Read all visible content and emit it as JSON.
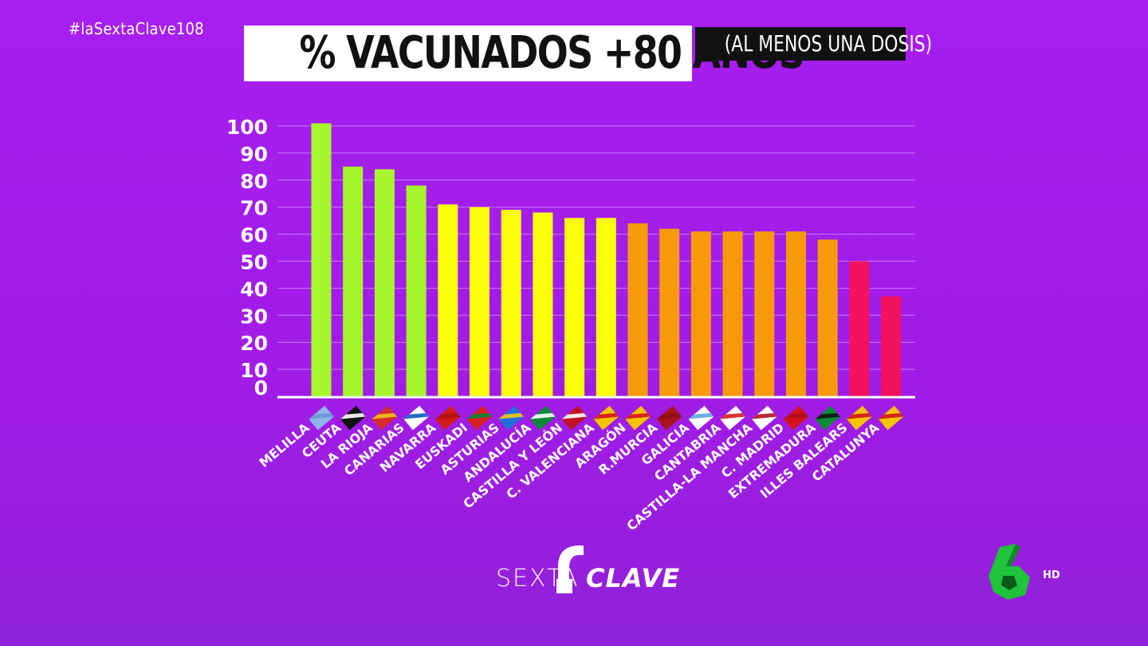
{
  "hashtag": "#laSextaClave108",
  "title": {
    "main": "% VACUNADOS +80 AÑOS",
    "sub": "(AL MENOS UNA DOSIS)"
  },
  "logo": {
    "left": "SEXTA",
    "right": "CLAVE",
    "channel_badge": "HD"
  },
  "colors": {
    "green": "#a6f52d",
    "yellow": "#fbff0e",
    "orange": "#f7990b",
    "red": "#f2125d"
  },
  "chart_data": {
    "type": "bar",
    "ylim": [
      0,
      100
    ],
    "yticks": [
      0,
      10,
      20,
      30,
      40,
      50,
      60,
      70,
      80,
      90,
      100
    ],
    "grid": true,
    "categories": [
      "MELILLA",
      "CEUTA",
      "LA RIOJA",
      "CANARIAS",
      "NAVARRA",
      "EUSKADI",
      "ASTURIAS",
      "ANDALUCÍA",
      "CASTILLA Y LEÓN",
      "C. VALENCIANA",
      "ARAGÓN",
      "R.MURCIA",
      "GALICIA",
      "CANTABRIA",
      "CASTILLA-LA MANCHA",
      "C. MADRID",
      "EXTREMADURA",
      "ILLES BALEARS",
      "CATALUNYA"
    ],
    "values": [
      101,
      85,
      84,
      78,
      71,
      70,
      69,
      68,
      66,
      66,
      64,
      62,
      61,
      61,
      61,
      61,
      58,
      50,
      37
    ],
    "bar_colors": [
      "green",
      "green",
      "green",
      "green",
      "yellow",
      "yellow",
      "yellow",
      "yellow",
      "yellow",
      "yellow",
      "orange",
      "orange",
      "orange",
      "orange",
      "orange",
      "orange",
      "orange",
      "red",
      "red"
    ],
    "flags": [
      "melilla-flag-icon",
      "ceuta-flag-icon",
      "la-rioja-flag-icon",
      "canarias-flag-icon",
      "navarra-flag-icon",
      "euskadi-flag-icon",
      "asturias-flag-icon",
      "andalucia-flag-icon",
      "castilla-leon-flag-icon",
      "valencia-flag-icon",
      "aragon-flag-icon",
      "murcia-flag-icon",
      "galicia-flag-icon",
      "cantabria-flag-icon",
      "castilla-la-mancha-flag-icon",
      "madrid-flag-icon",
      "extremadura-flag-icon",
      "baleares-flag-icon",
      "catalunya-flag-icon"
    ]
  }
}
